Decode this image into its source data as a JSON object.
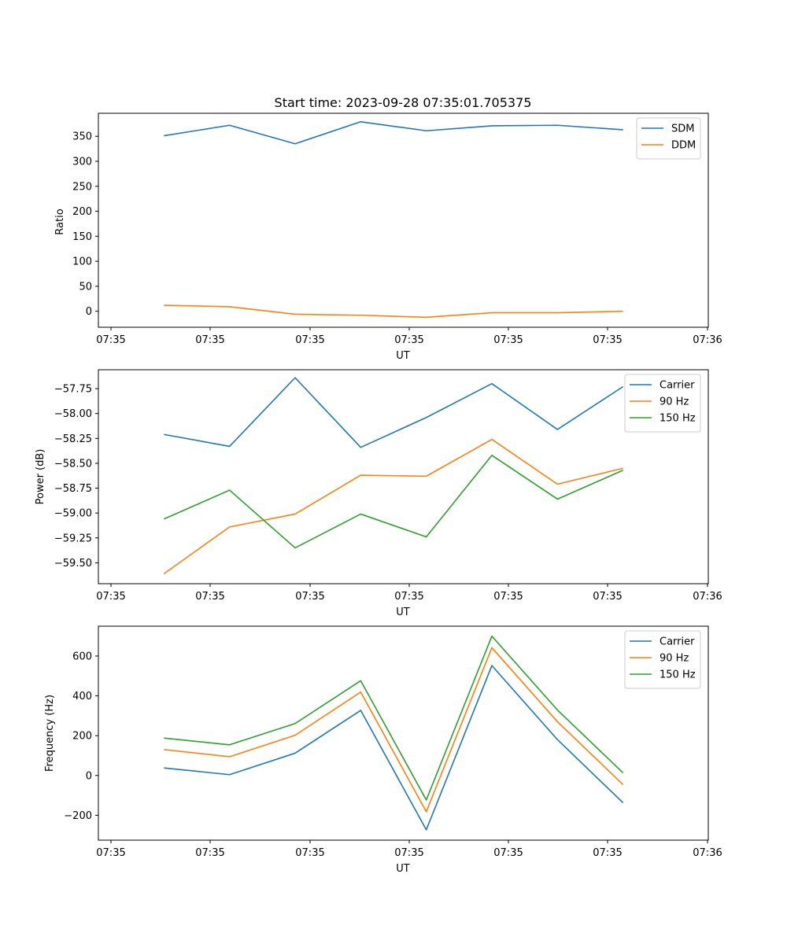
{
  "chart_data": [
    {
      "type": "line",
      "title": "Start time: 2023-09-28 07:35:01.705375",
      "xlabel": "UT",
      "ylabel": "Ratio",
      "xtick_labels": [
        "07:35",
        "07:35",
        "07:35",
        "07:35",
        "07:35",
        "07:35",
        "07:36"
      ],
      "yticks": [
        0,
        50,
        100,
        150,
        200,
        250,
        300,
        350
      ],
      "ytick_labels": [
        "0",
        "50",
        "100",
        "150",
        "200",
        "250",
        "300",
        "350"
      ],
      "xlim": [
        0,
        9.3
      ],
      "ylim": [
        -32,
        396
      ],
      "x": [
        1,
        2,
        3,
        4,
        5,
        6,
        7,
        8
      ],
      "legend_position": "top-right",
      "series": [
        {
          "name": "SDM",
          "color": "#1f77b4",
          "values": [
            351,
            372,
            335,
            379,
            361,
            371,
            372,
            363
          ]
        },
        {
          "name": "DDM",
          "color": "#ff7f0e",
          "values": [
            12,
            9,
            -6,
            -8,
            -12,
            -3,
            -3,
            0
          ]
        }
      ]
    },
    {
      "type": "line",
      "title": "",
      "xlabel": "UT",
      "ylabel": "Power (dB)",
      "xtick_labels": [
        "07:35",
        "07:35",
        "07:35",
        "07:35",
        "07:35",
        "07:35",
        "07:36"
      ],
      "yticks": [
        -59.5,
        -59.25,
        -59.0,
        -58.75,
        -58.5,
        -58.25,
        -58.0,
        -57.75
      ],
      "ytick_labels": [
        "−59.50",
        "−59.25",
        "−59.00",
        "−58.75",
        "−58.50",
        "−58.25",
        "−58.00",
        "−57.75"
      ],
      "xlim": [
        0,
        9.3
      ],
      "ylim": [
        -59.71,
        -57.56
      ],
      "x": [
        1,
        2,
        3,
        4,
        5,
        6,
        7,
        8
      ],
      "legend_position": "top-right",
      "series": [
        {
          "name": "Carrier",
          "color": "#1f77b4",
          "values": [
            -58.21,
            -58.33,
            -57.64,
            -58.34,
            -58.04,
            -57.7,
            -58.16,
            -57.73
          ]
        },
        {
          "name": "90 Hz",
          "color": "#ff7f0e",
          "values": [
            -59.61,
            -59.14,
            -59.01,
            -58.62,
            -58.63,
            -58.26,
            -58.71,
            -58.55
          ]
        },
        {
          "name": "150 Hz",
          "color": "#2ca02c",
          "values": [
            -59.06,
            -58.77,
            -59.35,
            -59.01,
            -59.24,
            -58.42,
            -58.86,
            -58.57
          ]
        }
      ]
    },
    {
      "type": "line",
      "title": "",
      "xlabel": "UT",
      "ylabel": "Frequency (Hz)",
      "xtick_labels": [
        "07:35",
        "07:35",
        "07:35",
        "07:35",
        "07:35",
        "07:35",
        "07:36"
      ],
      "yticks": [
        -200,
        0,
        200,
        400,
        600
      ],
      "ytick_labels": [
        "−200",
        "0",
        "200",
        "400",
        "600"
      ],
      "xlim": [
        0,
        9.3
      ],
      "ylim": [
        -325,
        750
      ],
      "x": [
        1,
        2,
        3,
        4,
        5,
        6,
        7,
        8
      ],
      "legend_position": "top-right",
      "series": [
        {
          "name": "Carrier",
          "color": "#1f77b4",
          "values": [
            38,
            4,
            112,
            327,
            -273,
            552,
            180,
            -137
          ]
        },
        {
          "name": "90 Hz",
          "color": "#ff7f0e",
          "values": [
            130,
            94,
            202,
            419,
            -182,
            642,
            270,
            -46
          ]
        },
        {
          "name": "150 Hz",
          "color": "#2ca02c",
          "values": [
            188,
            154,
            261,
            476,
            -123,
            700,
            329,
            13
          ]
        }
      ]
    }
  ]
}
